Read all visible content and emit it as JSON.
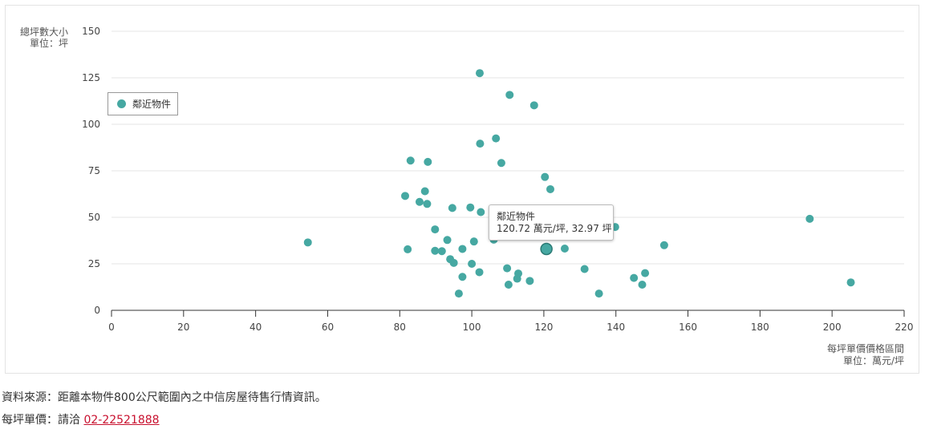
{
  "chart_data": {
    "type": "scatter",
    "ylabel": [
      "總坪數大小",
      "單位：坪"
    ],
    "xlabel": [
      "每坪單價價格區間",
      "單位：萬元/坪"
    ],
    "xlim": [
      0,
      220
    ],
    "ylim": [
      0,
      150
    ],
    "x_ticks": [
      "0",
      "20",
      "40",
      "60",
      "80",
      "100",
      "120",
      "140",
      "160",
      "180",
      "200",
      "220"
    ],
    "y_ticks": [
      "0",
      "25",
      "50",
      "75",
      "100",
      "125",
      "150"
    ],
    "grid": "horizontal",
    "legend_position": "left",
    "series": [
      {
        "name": "鄰近物件",
        "color": "#46a8a2",
        "points": [
          [
            54.5,
            36.5
          ],
          [
            81.5,
            61.5
          ],
          [
            82.2,
            32.8
          ],
          [
            83.0,
            80.5
          ],
          [
            85.5,
            58.3
          ],
          [
            87.0,
            64.0
          ],
          [
            87.6,
            57.2
          ],
          [
            87.8,
            79.8
          ],
          [
            89.8,
            43.5
          ],
          [
            89.8,
            32.0
          ],
          [
            91.7,
            31.8
          ],
          [
            93.2,
            37.8
          ],
          [
            94.0,
            27.5
          ],
          [
            94.6,
            55.0
          ],
          [
            95.0,
            25.5
          ],
          [
            96.4,
            9.0
          ],
          [
            97.4,
            18.0
          ],
          [
            97.4,
            33.0
          ],
          [
            99.6,
            55.3
          ],
          [
            100.0,
            25.0
          ],
          [
            100.6,
            37.0
          ],
          [
            102.1,
            20.5
          ],
          [
            102.2,
            127.5
          ],
          [
            102.3,
            89.6
          ],
          [
            102.5,
            52.8
          ],
          [
            106.1,
            38.0
          ],
          [
            106.7,
            92.4
          ],
          [
            108.2,
            79.2
          ],
          [
            109.8,
            22.6
          ],
          [
            110.2,
            13.8
          ],
          [
            110.5,
            115.8
          ],
          [
            112.6,
            17.0
          ],
          [
            112.9,
            19.8
          ],
          [
            116.1,
            15.8
          ],
          [
            117.3,
            110.2
          ],
          [
            120.3,
            71.7
          ],
          [
            120.72,
            32.97
          ],
          [
            121.8,
            65.1
          ],
          [
            125.8,
            33.2
          ],
          [
            131.3,
            22.2
          ],
          [
            135.3,
            9.0
          ],
          [
            139.8,
            44.8
          ],
          [
            145.0,
            17.4
          ],
          [
            147.3,
            13.8
          ],
          [
            148.1,
            20.0
          ],
          [
            153.4,
            35.0
          ],
          [
            193.8,
            49.2
          ],
          [
            205.2,
            15.0
          ]
        ]
      }
    ],
    "highlighted": [
      120.72,
      32.97
    ]
  },
  "tooltip": {
    "title": "鄰近物件",
    "value_text": "120.72 萬元/坪, 32.97 坪"
  },
  "footer": {
    "source_text": "資料來源：距離本物件800公尺範圍內之中信房屋待售行情資訊。",
    "price_label": "每坪單價：請洽 ",
    "phone": "02-22521888"
  },
  "colors": {
    "accent": "#46a8a2",
    "link": "#c8102e"
  }
}
